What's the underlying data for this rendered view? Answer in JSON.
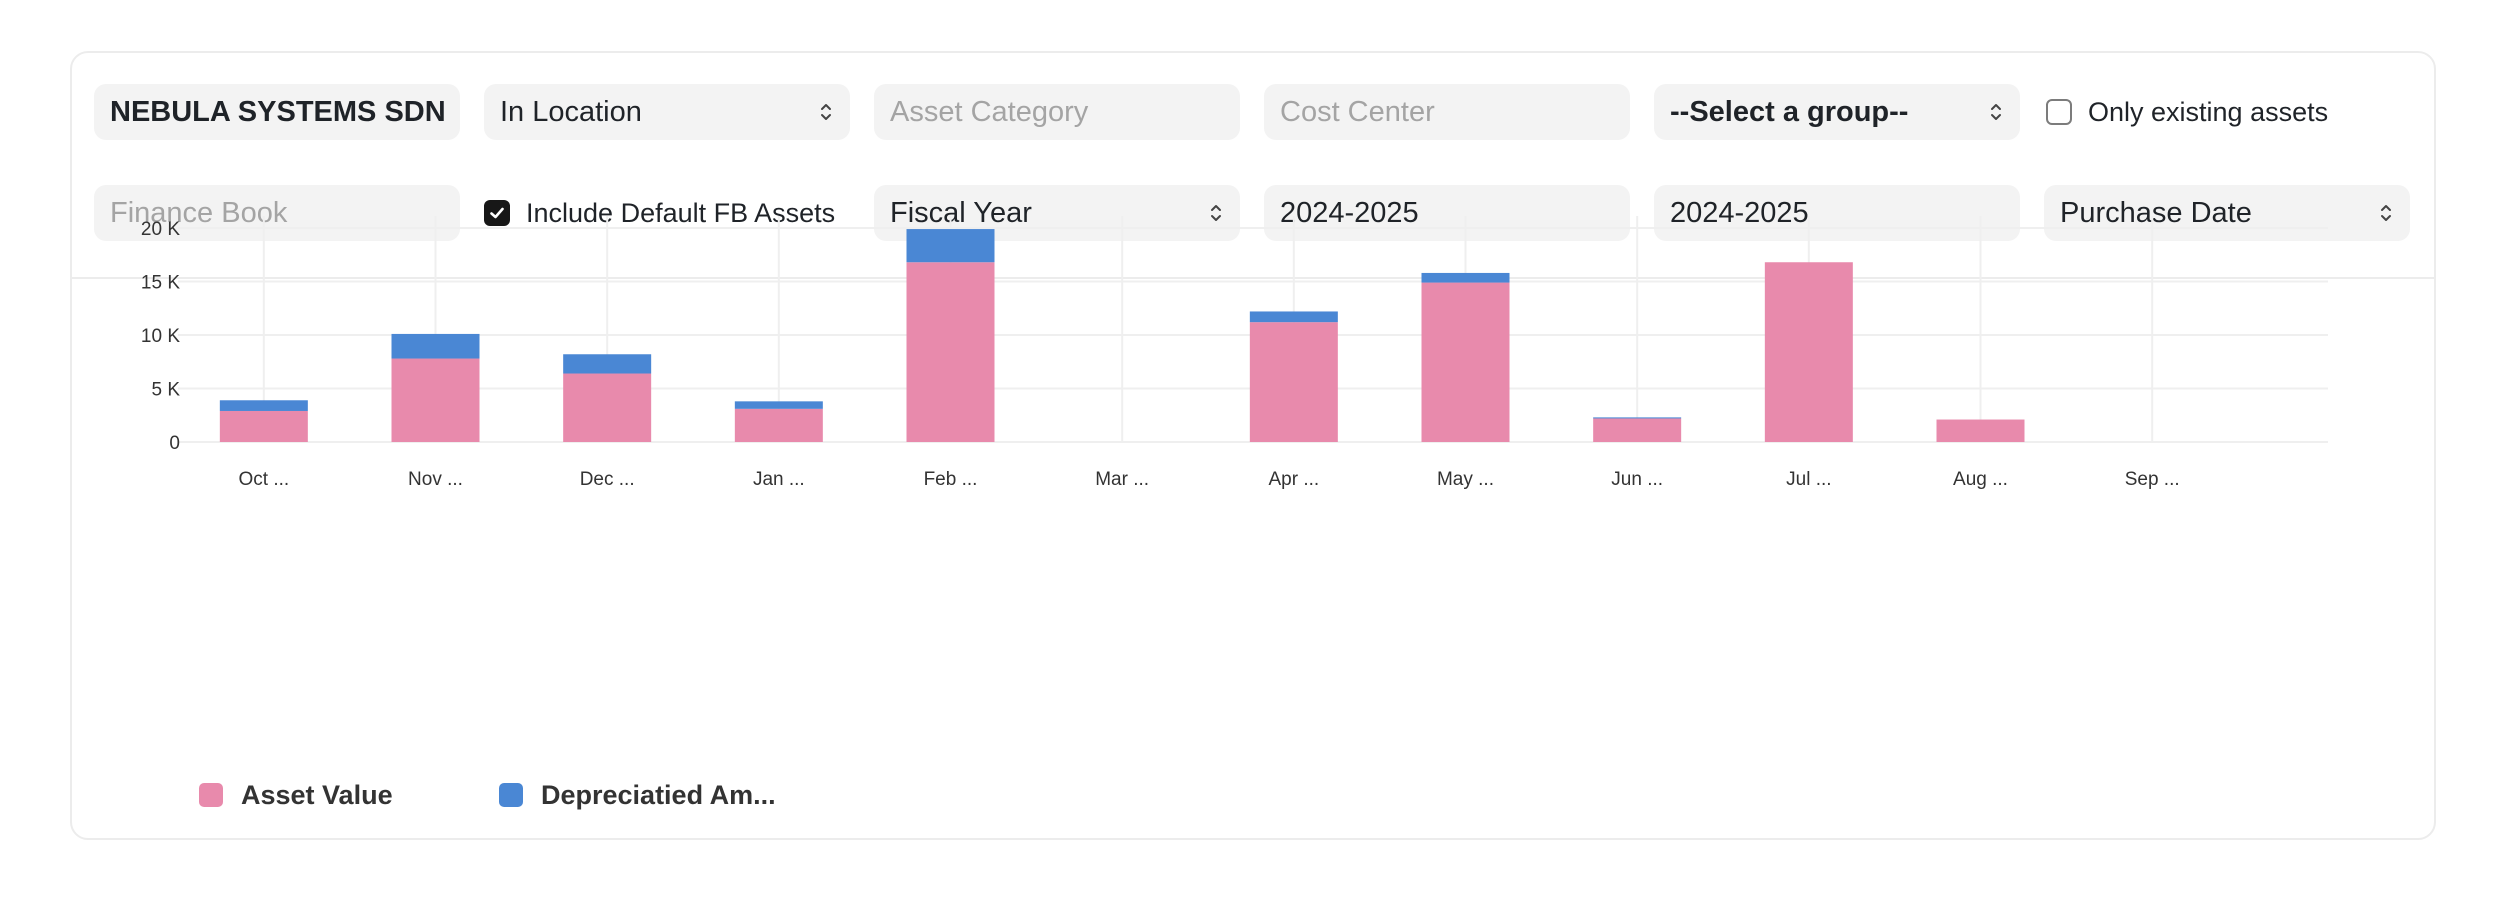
{
  "filters": {
    "company": "NEBULA SYSTEMS SDN",
    "location_filter": "In Location",
    "asset_category_placeholder": "Asset Category",
    "cost_center_placeholder": "Cost Center",
    "group_select": "--Select a group--",
    "only_existing_label": "Only existing assets",
    "only_existing_checked": false,
    "finance_book_placeholder": "Finance Book",
    "include_default_label": "Include Default FB Assets",
    "include_default_checked": true,
    "period_type": "Fiscal Year",
    "from_fiscal_year": "2024-2025",
    "to_fiscal_year": "2024-2025",
    "date_based_on": "Purchase Date"
  },
  "colors": {
    "asset_value": "#e88aac",
    "depreciated": "#4a87d4",
    "grid": "#efefef",
    "axis_text": "#333333"
  },
  "chart_data": {
    "type": "bar",
    "stacked": true,
    "title": "",
    "xlabel": "",
    "ylabel": "",
    "categories": [
      "Oct ...",
      "Nov ...",
      "Dec ...",
      "Jan ...",
      "Feb ...",
      "Mar ...",
      "Apr ...",
      "May ...",
      "Jun ...",
      "Jul ...",
      "Aug ...",
      "Sep ..."
    ],
    "series": [
      {
        "name": "Asset Value",
        "values": [
          2900,
          7800,
          6400,
          3100,
          16800,
          0,
          11200,
          14900,
          2200,
          16800,
          2100,
          0
        ]
      },
      {
        "name": "Depreciatied Am...",
        "values": [
          1000,
          2300,
          1800,
          700,
          3100,
          0,
          1000,
          900,
          100,
          0,
          0,
          0
        ]
      }
    ],
    "y_ticks": [
      {
        "value": 0,
        "label": "0"
      },
      {
        "value": 5000,
        "label": "5 K"
      },
      {
        "value": 10000,
        "label": "10 K"
      },
      {
        "value": 15000,
        "label": "15 K"
      },
      {
        "value": 20000,
        "label": "20 K"
      }
    ],
    "ylim": [
      0,
      20000
    ],
    "grid": true,
    "legend_position": "bottom-left"
  }
}
